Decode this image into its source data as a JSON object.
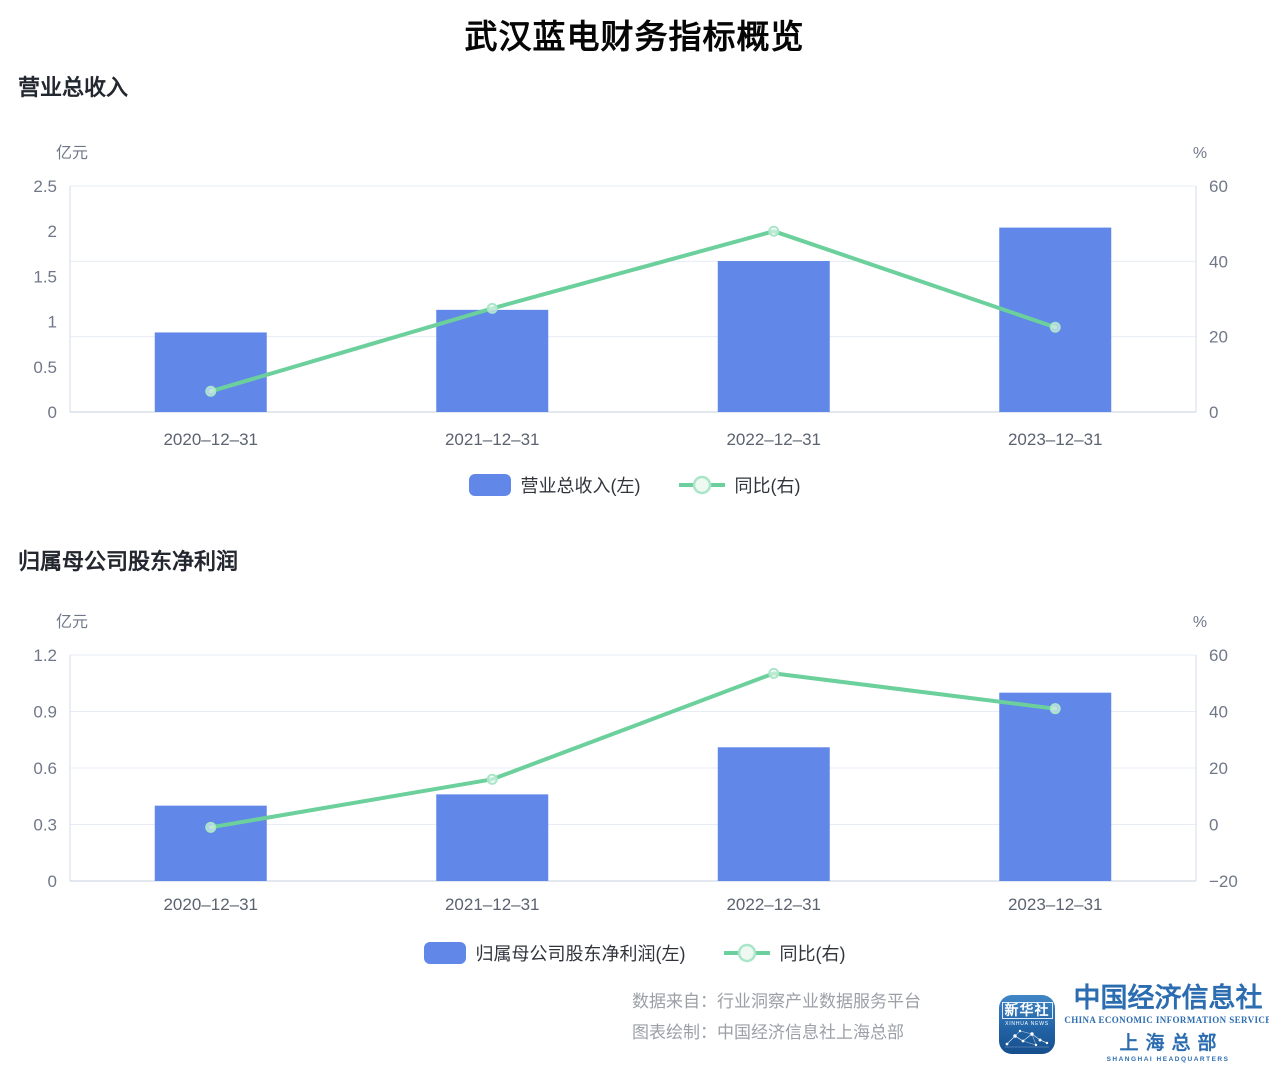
{
  "title": "武汉蓝电财务指标概览",
  "colors": {
    "bar": "#6187e8",
    "line": "#6bd09c",
    "line_marker_ring": "#a9e6c9",
    "grid": "#e7ecf6",
    "axis_side": "#d5dcea",
    "axis_bottom": "#c7d0e0",
    "y_tick_text": "#707888",
    "x_tick_text": "#5b6370",
    "axis_unit_text": "#707888",
    "logo_blue": "#2c6cb0"
  },
  "chart_data": [
    {
      "type": "bar+line",
      "title": "营业总收入",
      "categories": [
        "2020–12–31",
        "2021–12–31",
        "2022–12–31",
        "2023–12–31"
      ],
      "series": [
        {
          "name": "营业总收入(左)",
          "type": "bar",
          "axis": "left",
          "values": [
            0.88,
            1.13,
            1.67,
            2.04
          ]
        },
        {
          "name": "同比(右)",
          "type": "line",
          "axis": "right",
          "values": [
            5.5,
            27.5,
            48,
            22.5
          ]
        }
      ],
      "left_axis": {
        "name": "亿元",
        "min": 0,
        "max": 2.5,
        "ticks": [
          {
            "value": 2.5,
            "label": "2.5"
          },
          {
            "value": 2,
            "label": "2"
          },
          {
            "value": 1.5,
            "label": "1.5"
          },
          {
            "value": 1,
            "label": "1"
          },
          {
            "value": 0.5,
            "label": "0.5"
          },
          {
            "value": 0,
            "label": "0"
          }
        ]
      },
      "right_axis": {
        "name": "%",
        "min": 0,
        "max": 60,
        "ticks": [
          {
            "value": 60,
            "label": "60"
          },
          {
            "value": 40,
            "label": "40"
          },
          {
            "value": 20,
            "label": "20"
          },
          {
            "value": 0,
            "label": "0"
          }
        ]
      },
      "legend_position": "bottom",
      "grid_on": true
    },
    {
      "type": "bar+line",
      "title": "归属母公司股东净利润",
      "categories": [
        "2020–12–31",
        "2021–12–31",
        "2022–12–31",
        "2023–12–31"
      ],
      "series": [
        {
          "name": "归属母公司股东净利润(左)",
          "type": "bar",
          "axis": "left",
          "values": [
            0.4,
            0.46,
            0.71,
            1.0
          ]
        },
        {
          "name": "同比(右)",
          "type": "line",
          "axis": "right",
          "values": [
            -1,
            16,
            53.5,
            41
          ]
        }
      ],
      "left_axis": {
        "name": "亿元",
        "min": 0,
        "max": 1.2,
        "ticks": [
          {
            "value": 1.2,
            "label": "1.2"
          },
          {
            "value": 0.9,
            "label": "0.9"
          },
          {
            "value": 0.6,
            "label": "0.6"
          },
          {
            "value": 0.3,
            "label": "0.3"
          },
          {
            "value": 0,
            "label": "0"
          }
        ]
      },
      "right_axis": {
        "name": "%",
        "min": -20,
        "max": 60,
        "ticks": [
          {
            "value": 60,
            "label": "60"
          },
          {
            "value": 40,
            "label": "40"
          },
          {
            "value": 20,
            "label": "20"
          },
          {
            "value": 0,
            "label": "0"
          },
          {
            "value": -20,
            "label": "−20"
          }
        ]
      },
      "legend_position": "bottom",
      "grid_on": true
    }
  ],
  "footer": {
    "source_line": "数据来自：行业洞察产业数据服务平台",
    "credit_line": "图表绘制：中国经济信息社上海总部"
  },
  "logo": {
    "icon_title": "新华社",
    "icon_subtitle": "XINHUA NEWS",
    "org_cn": "中国经济信息社",
    "org_en": "CHINA ECONOMIC INFORMATION SERVICE",
    "branch_cn": "上海总部",
    "branch_en": "SHANGHAI HEADQUARTERS"
  }
}
